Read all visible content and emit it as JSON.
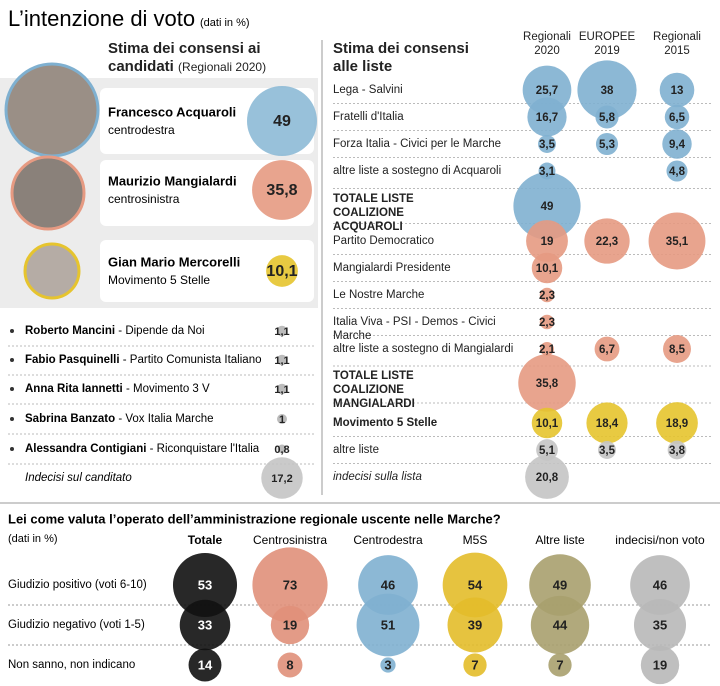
{
  "title": "L’intenzione di voto",
  "title_note": "(dati in %)",
  "chart_data": [
    {
      "type": "bubble",
      "title": "Stima dei consensi ai candidati",
      "note": "(Regionali 2020)",
      "categories": [
        "Francesco Acquaroli",
        "Maurizio Mangialardi",
        "Gian Mario Mercorelli",
        "Roberto Mancini",
        "Fabio Pasquinelli",
        "Anna Rita Iannetti",
        "Sabrina Banzato",
        "Alessandra Contigiani",
        "Indecisi sul canditato"
      ],
      "details": [
        "centrodestra",
        "centrosinistra",
        "Movimento 5 Stelle",
        "- Dipende da Noi",
        "- Partito Comunista Italiano",
        "- Movimento 3 V",
        "- Vox Italia Marche",
        "- Riconquistare l'Italia",
        null
      ],
      "values": [
        49,
        35.8,
        10.1,
        1.1,
        1.1,
        1.1,
        1,
        0.8,
        17.2
      ],
      "value_labels": [
        "49",
        "35,8",
        "10,1",
        "1,1",
        "1,1",
        "1,1",
        "1",
        "0,8",
        "17,2"
      ],
      "colors": [
        "#8dbad6",
        "#e69a82",
        "#e6c42e",
        "#b5b5b5",
        "#b5b5b5",
        "#b5b5b5",
        "#b5b5b5",
        "#b5b5b5",
        "#c4c4c4"
      ]
    },
    {
      "type": "bubble-table",
      "title": "Stima dei consensi alle liste",
      "categories": [
        "Lega - Salvini",
        "Fratelli d'Italia",
        "Forza Italia - Civici per le Marche",
        "altre liste a sostegno di Acquaroli",
        "TOTALE LISTE COALIZIONE ACQUAROLI",
        "Partito Democratico",
        "Mangialardi Presidente",
        "Le Nostre Marche",
        "Italia Viva - PSI - Demos - Civici Marche",
        "altre liste a sostegno di Mangialardi",
        "TOTALE LISTE COALIZIONE MANGIALARDI",
        "Movimento 5 Stelle",
        "altre liste",
        "indecisi sulla lista"
      ],
      "bold": [
        false,
        false,
        false,
        false,
        true,
        false,
        false,
        false,
        false,
        false,
        true,
        true,
        false,
        false
      ],
      "row_colors": [
        "#7fb0d0",
        "#7fb0d0",
        "#7fb0d0",
        "#7fb0d0",
        "#7fb0d0",
        "#e69a82",
        "#e69a82",
        "#e69a82",
        "#e69a82",
        "#e69a82",
        "#e69a82",
        "#e6c42e",
        "#c4c4c4",
        "#c4c4c4"
      ],
      "series": [
        {
          "name": "Regionali 2020",
          "values": [
            25.7,
            16.7,
            3.5,
            3.1,
            49,
            19,
            10.1,
            2.3,
            2.3,
            2.1,
            35.8,
            10.1,
            5.1,
            20.8
          ],
          "value_labels": [
            "25,7",
            "16,7",
            "3,5",
            "3,1",
            "49",
            "19",
            "10,1",
            "2,3",
            "2,3",
            "2,1",
            "35,8",
            "10,1",
            "5,1",
            "20,8"
          ]
        },
        {
          "name": "EUROPEE 2019",
          "values": [
            38,
            5.8,
            5.3,
            null,
            null,
            22.3,
            null,
            null,
            null,
            6.7,
            null,
            18.4,
            3.5,
            null
          ],
          "value_labels": [
            "38",
            "5,8",
            "5,3",
            null,
            null,
            "22,3",
            null,
            null,
            null,
            "6,7",
            null,
            "18,4",
            "3,5",
            null
          ]
        },
        {
          "name": "Regionali 2015",
          "values": [
            13,
            6.5,
            9.4,
            4.8,
            null,
            35.1,
            null,
            null,
            null,
            8.5,
            null,
            18.9,
            3.8,
            null
          ],
          "value_labels": [
            "13",
            "6,5",
            "9,4",
            "4,8",
            null,
            "35,1",
            null,
            null,
            null,
            "8,5",
            null,
            "18,9",
            "3,8",
            null
          ]
        }
      ]
    },
    {
      "type": "bubble-table",
      "title": "Lei come valuta l’operato dell’amministrazione regionale uscente nelle Marche?",
      "note": "(dati in %)",
      "categories": [
        "Giudizio positivo (voti 6-10)",
        "Giudizio negativo (voti 1-5)",
        "Non sanno, non indicano"
      ],
      "series": [
        {
          "name": "Totale",
          "color": "#111111",
          "values": [
            53,
            33,
            14
          ]
        },
        {
          "name": "Centrosinistra",
          "color": "#e0907a",
          "values": [
            73,
            19,
            8
          ]
        },
        {
          "name": "Centrodestra",
          "color": "#7fb0d0",
          "values": [
            46,
            51,
            3
          ]
        },
        {
          "name": "M5S",
          "color": "#e3bd2a",
          "values": [
            54,
            39,
            7
          ]
        },
        {
          "name": "Altre liste",
          "color": "#a9a06e",
          "values": [
            49,
            44,
            7
          ]
        },
        {
          "name": "indecisi/non voto",
          "color": "#b8b8b8",
          "values": [
            46,
            35,
            19
          ]
        }
      ]
    }
  ]
}
